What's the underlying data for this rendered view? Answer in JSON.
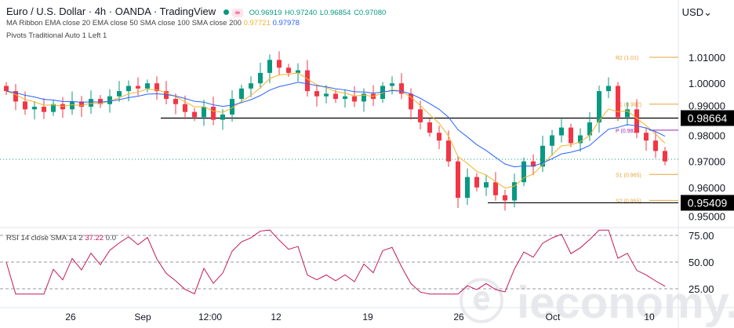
{
  "header": {
    "title": "Euro / U.S. Dollar · 4h · OANDA · TradingView",
    "open": "O0.96919",
    "high": "H0.97240",
    "low": "L0.96854",
    "close": "C0.97080",
    "ma_label": "MA Ribbon EMA close 20 EMA close 50 SMA close 100 SMA close 200",
    "ma_v1": "0.97721",
    "ma_v2": "0.97978",
    "pivots_label": "Pivots Traditional Auto 1 Left 1",
    "currency": "USD"
  },
  "rsi": {
    "label": "RSI 14 close SMA 14 2",
    "v1": "37.22",
    "v2": "0.0",
    "ticks": [
      "75.00",
      "50.00",
      "25.00"
    ]
  },
  "watermark": "ieconomy.io",
  "colors": {
    "up": "#089981",
    "down": "#f23645",
    "ema_fast": "#f0b429",
    "ema_slow": "#2962ff",
    "pivot": "#e8a33c",
    "pivot_p": "#9c27b0",
    "rsi": "#c2185b"
  },
  "chart_data": {
    "type": "candlestick",
    "ylim": [
      0.95,
      1.015
    ],
    "y_ticks": [
      "1.01000",
      "1.00000",
      "0.99000",
      "0.98000",
      "0.97000",
      "0.96000",
      "0.95000"
    ],
    "x_ticks": [
      "26",
      "Sep",
      "12:00",
      "12",
      "19",
      "26",
      "Oct",
      "10"
    ],
    "closes": [
      0.997,
      0.993,
      0.99,
      0.991,
      0.989,
      0.992,
      0.99,
      0.993,
      0.991,
      0.994,
      0.992,
      0.995,
      0.997,
      0.999,
      0.998,
      1.0,
      0.997,
      0.994,
      0.992,
      0.989,
      0.987,
      0.991,
      0.986,
      0.988,
      0.994,
      0.998,
      1.0,
      1.004,
      1.009,
      1.006,
      1.004,
      1.005,
      0.997,
      0.995,
      0.996,
      0.994,
      0.995,
      0.993,
      0.996,
      0.994,
      0.999,
      1.0,
      0.996,
      0.99,
      0.985,
      0.981,
      0.978,
      0.97,
      0.956,
      0.964,
      0.96,
      0.962,
      0.957,
      0.955,
      0.962,
      0.97,
      0.968,
      0.976,
      0.98,
      0.983,
      0.977,
      0.98,
      0.985,
      0.997,
      0.999,
      0.987,
      0.99,
      0.981,
      0.978,
      0.974,
      0.97
    ],
    "levels": [
      {
        "label": "0.98664",
        "value": 0.98664
      },
      {
        "label": "0.95409",
        "value": 0.95409
      }
    ],
    "current_price": 0.9708,
    "pivots": [
      {
        "label": "R2 (1.01)",
        "value": 1.01
      },
      {
        "label": "R1 (0.992)",
        "value": 0.992
      },
      {
        "label": "P (0.982)",
        "value": 0.982
      },
      {
        "label": "S1 (0.965)",
        "value": 0.965
      },
      {
        "label": "S2 (0.955)",
        "value": 0.955
      }
    ]
  }
}
